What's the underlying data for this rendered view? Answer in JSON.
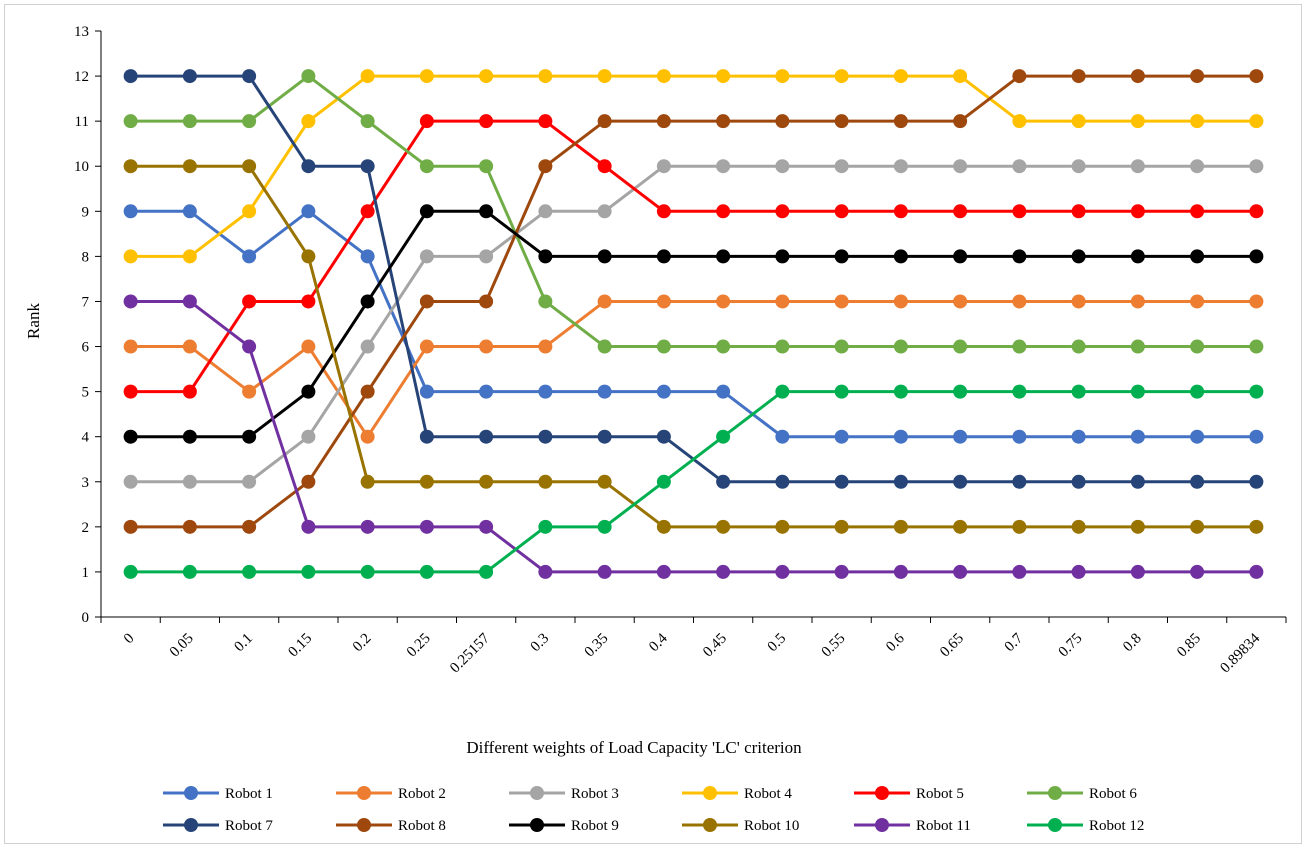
{
  "chart_data": {
    "type": "line",
    "title": "",
    "xlabel": "Different weights of Load Capacity 'LC' criterion",
    "ylabel": "Rank",
    "ylim": [
      0,
      13
    ],
    "yticks": [
      0,
      1,
      2,
      3,
      4,
      5,
      6,
      7,
      8,
      9,
      10,
      11,
      12,
      13
    ],
    "grid": false,
    "legend_position": "bottom",
    "categories": [
      "0",
      "0.05",
      "0.1",
      "0.15",
      "0.2",
      "0.25",
      "0.25157",
      "0.3",
      "0.35",
      "0.4",
      "0.45",
      "0.5",
      "0.55",
      "0.6",
      "0.65",
      "0.7",
      "0.75",
      "0.8",
      "0.85",
      "0.89834"
    ],
    "series": [
      {
        "name": "Robot 1",
        "color": "#4472C4",
        "values": [
          9,
          9,
          8,
          9,
          8,
          5,
          5,
          5,
          5,
          5,
          5,
          4,
          4,
          4,
          4,
          4,
          4,
          4,
          4,
          4
        ]
      },
      {
        "name": "Robot 2",
        "color": "#ED7D31",
        "values": [
          6,
          6,
          5,
          6,
          4,
          6,
          6,
          6,
          7,
          7,
          7,
          7,
          7,
          7,
          7,
          7,
          7,
          7,
          7,
          7
        ]
      },
      {
        "name": "Robot 3",
        "color": "#A5A5A5",
        "values": [
          3,
          3,
          3,
          4,
          6,
          8,
          8,
          9,
          9,
          10,
          10,
          10,
          10,
          10,
          10,
          10,
          10,
          10,
          10,
          10
        ]
      },
      {
        "name": "Robot 4",
        "color": "#FFC000",
        "values": [
          8,
          8,
          9,
          11,
          12,
          12,
          12,
          12,
          12,
          12,
          12,
          12,
          12,
          12,
          12,
          11,
          11,
          11,
          11,
          11
        ]
      },
      {
        "name": "Robot 5",
        "color": "#FF0000",
        "values": [
          5,
          5,
          7,
          7,
          9,
          11,
          11,
          11,
          10,
          9,
          9,
          9,
          9,
          9,
          9,
          9,
          9,
          9,
          9,
          9
        ]
      },
      {
        "name": "Robot 6",
        "color": "#70AD47",
        "values": [
          11,
          11,
          11,
          12,
          11,
          10,
          10,
          7,
          6,
          6,
          6,
          6,
          6,
          6,
          6,
          6,
          6,
          6,
          6,
          6
        ]
      },
      {
        "name": "Robot 7",
        "color": "#264478",
        "values": [
          12,
          12,
          12,
          10,
          10,
          4,
          4,
          4,
          4,
          4,
          3,
          3,
          3,
          3,
          3,
          3,
          3,
          3,
          3,
          3
        ]
      },
      {
        "name": "Robot 8",
        "color": "#9E480E",
        "values": [
          2,
          2,
          2,
          3,
          5,
          7,
          7,
          10,
          11,
          11,
          11,
          11,
          11,
          11,
          11,
          12,
          12,
          12,
          12,
          12
        ]
      },
      {
        "name": "Robot 9",
        "color": "#000000",
        "values": [
          4,
          4,
          4,
          5,
          7,
          9,
          9,
          8,
          8,
          8,
          8,
          8,
          8,
          8,
          8,
          8,
          8,
          8,
          8,
          8
        ]
      },
      {
        "name": "Robot 10",
        "color": "#997300",
        "values": [
          10,
          10,
          10,
          8,
          3,
          3,
          3,
          3,
          3,
          2,
          2,
          2,
          2,
          2,
          2,
          2,
          2,
          2,
          2,
          2
        ]
      },
      {
        "name": "Robot 11",
        "color": "#7030A0",
        "values": [
          7,
          7,
          6,
          2,
          2,
          2,
          2,
          1,
          1,
          1,
          1,
          1,
          1,
          1,
          1,
          1,
          1,
          1,
          1,
          1
        ]
      },
      {
        "name": "Robot 12",
        "color": "#00B050",
        "values": [
          1,
          1,
          1,
          1,
          1,
          1,
          1,
          2,
          2,
          3,
          4,
          5,
          5,
          5,
          5,
          5,
          5,
          5,
          5,
          5
        ]
      }
    ]
  }
}
